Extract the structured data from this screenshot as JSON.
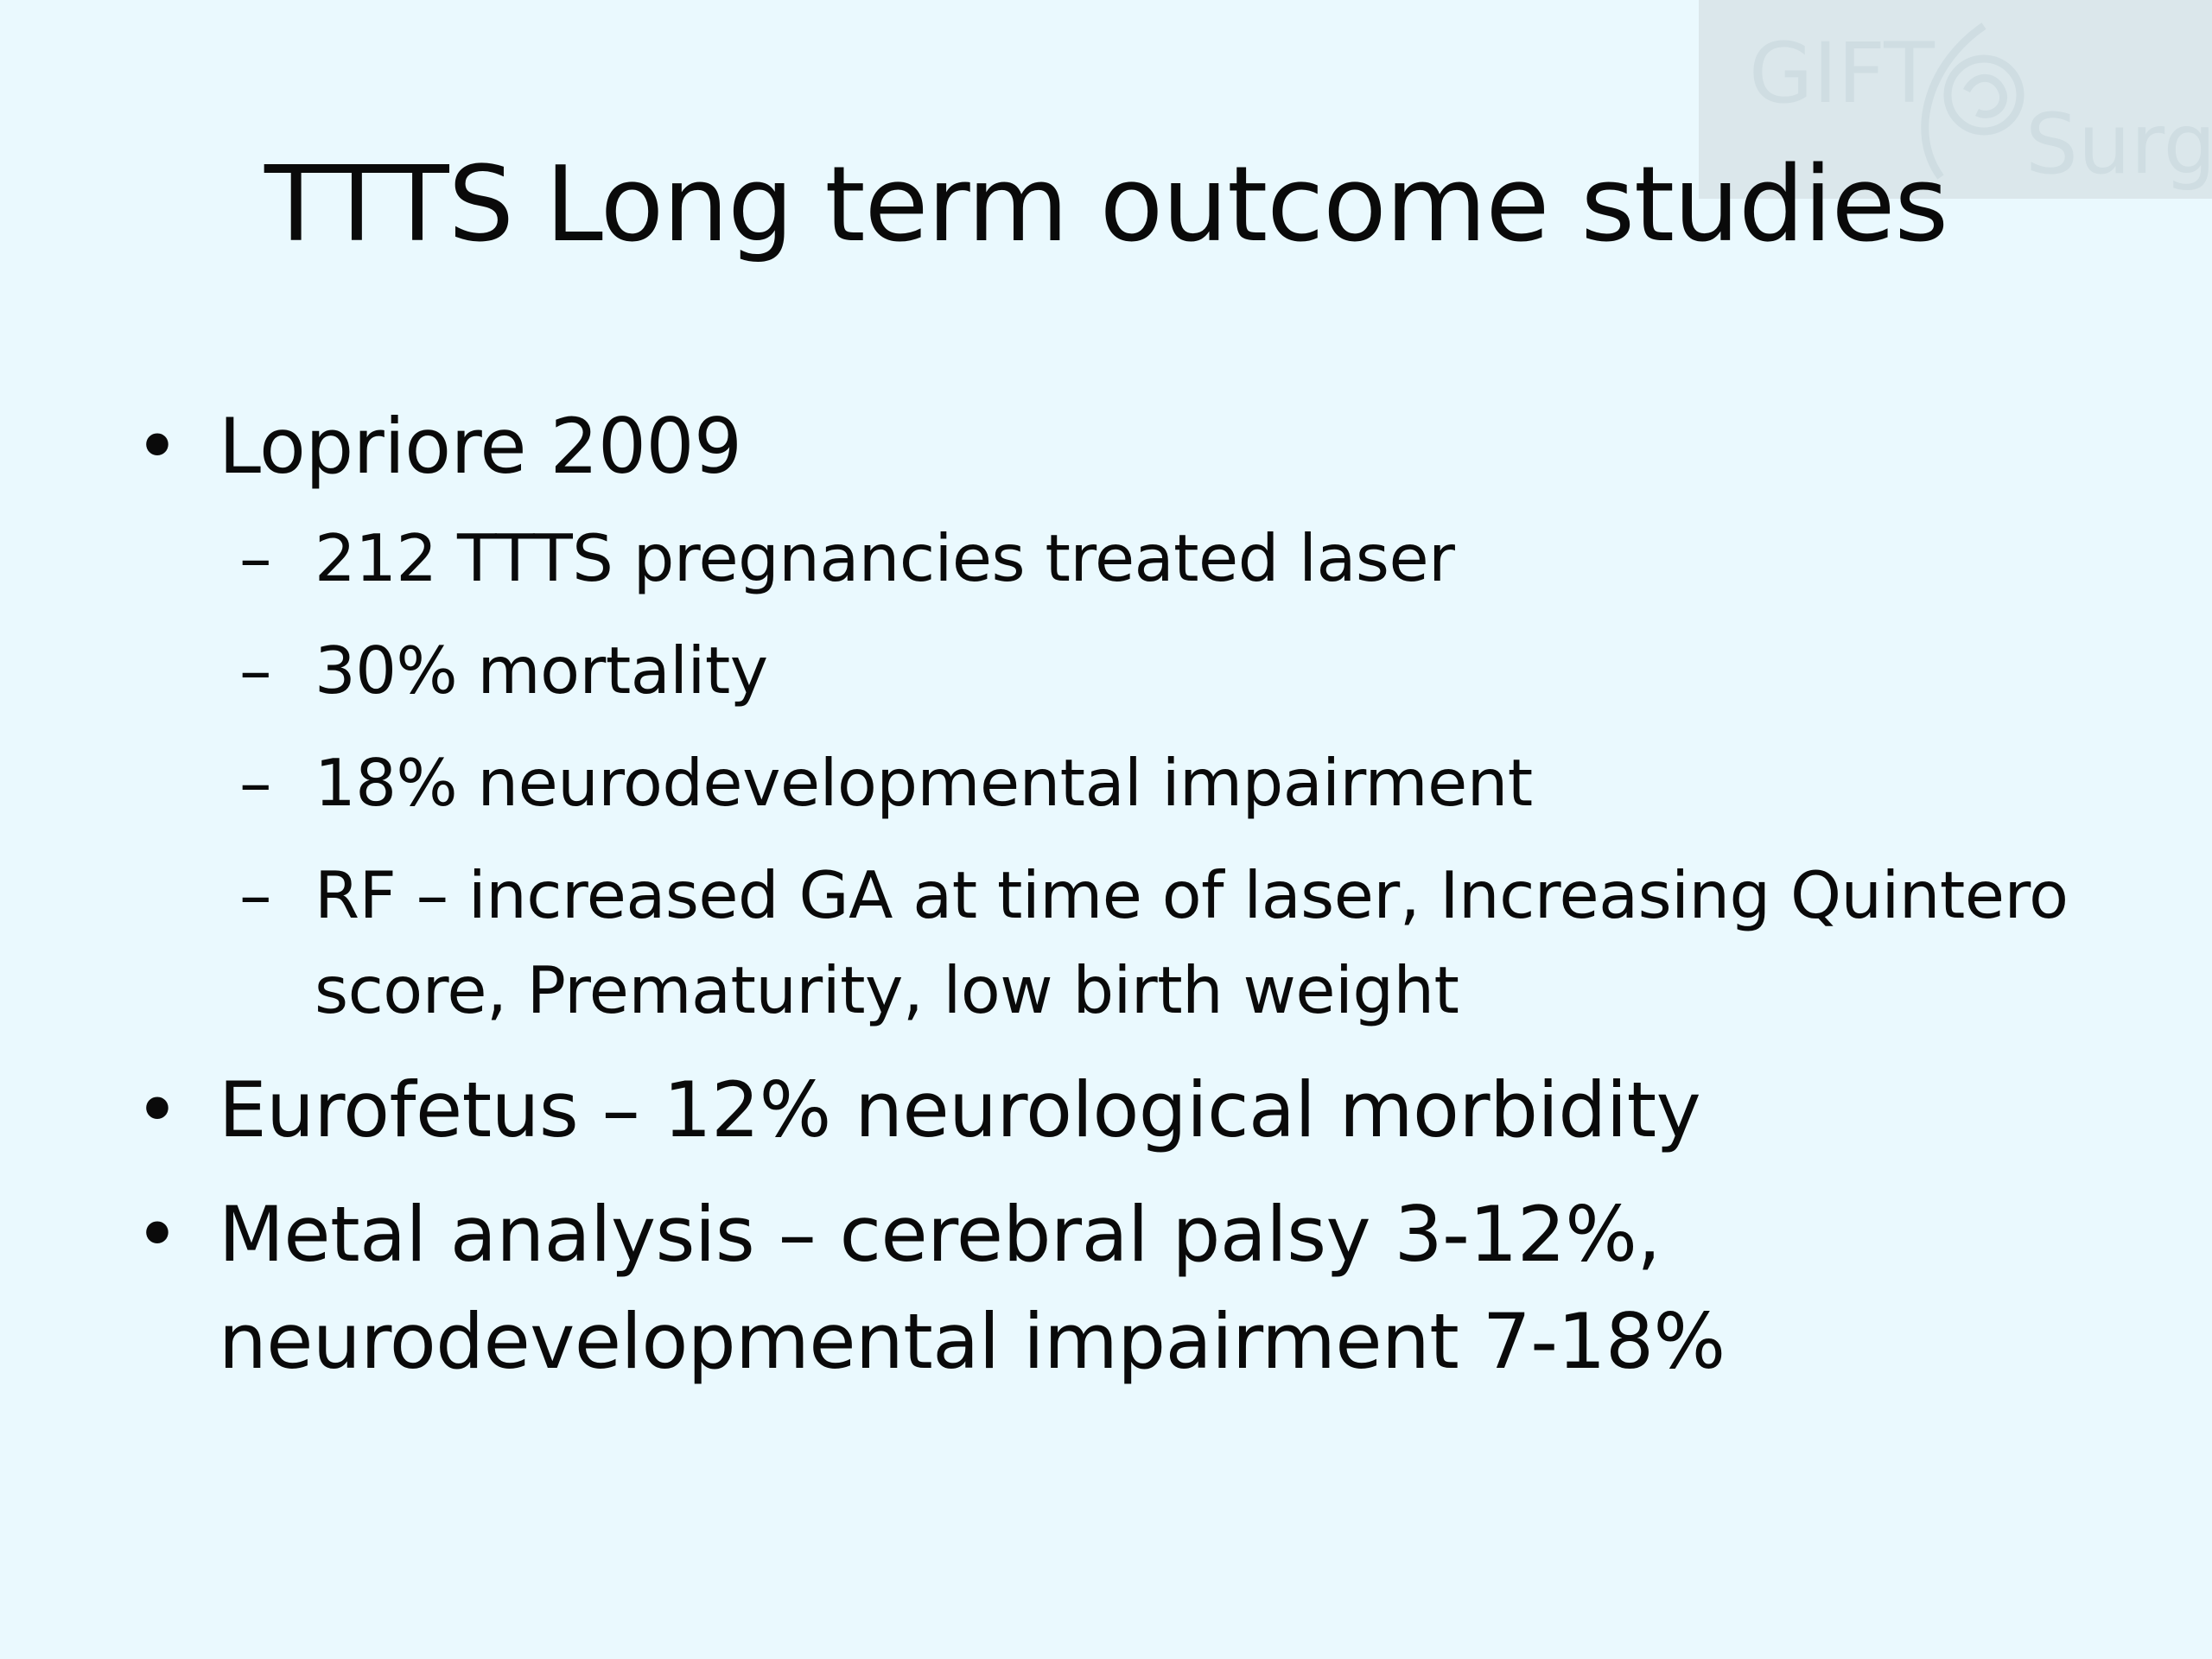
{
  "slide": {
    "title": "TTTS Long term outcome studies",
    "watermark_logo": {
      "text_top": "GIFT",
      "text_bottom": "Surg",
      "icon": "fetus-icon"
    },
    "bullets": [
      {
        "marker": "•",
        "text": "Lopriore 2009",
        "sub": [
          {
            "marker": "–",
            "text": "212 TTTS pregnancies treated laser"
          },
          {
            "marker": "–",
            "text": "30% mortality"
          },
          {
            "marker": "–",
            "text": "18% neurodevelopmental impairment"
          },
          {
            "marker": "–",
            "text": "RF – increased GA at time of laser, Increasing Quintero score, Prematurity, low birth weight"
          }
        ]
      },
      {
        "marker": "•",
        "text": "Eurofetus – 12% neurological morbidity"
      },
      {
        "marker": "•",
        "text": "Metal analysis – cerebral palsy 3-12%, neurodevelopmental impairment 7-18%"
      }
    ]
  },
  "colors": {
    "background": "#eaf9fe",
    "text": "#0a0a0a",
    "watermark_bg": "#dbe7eb"
  }
}
